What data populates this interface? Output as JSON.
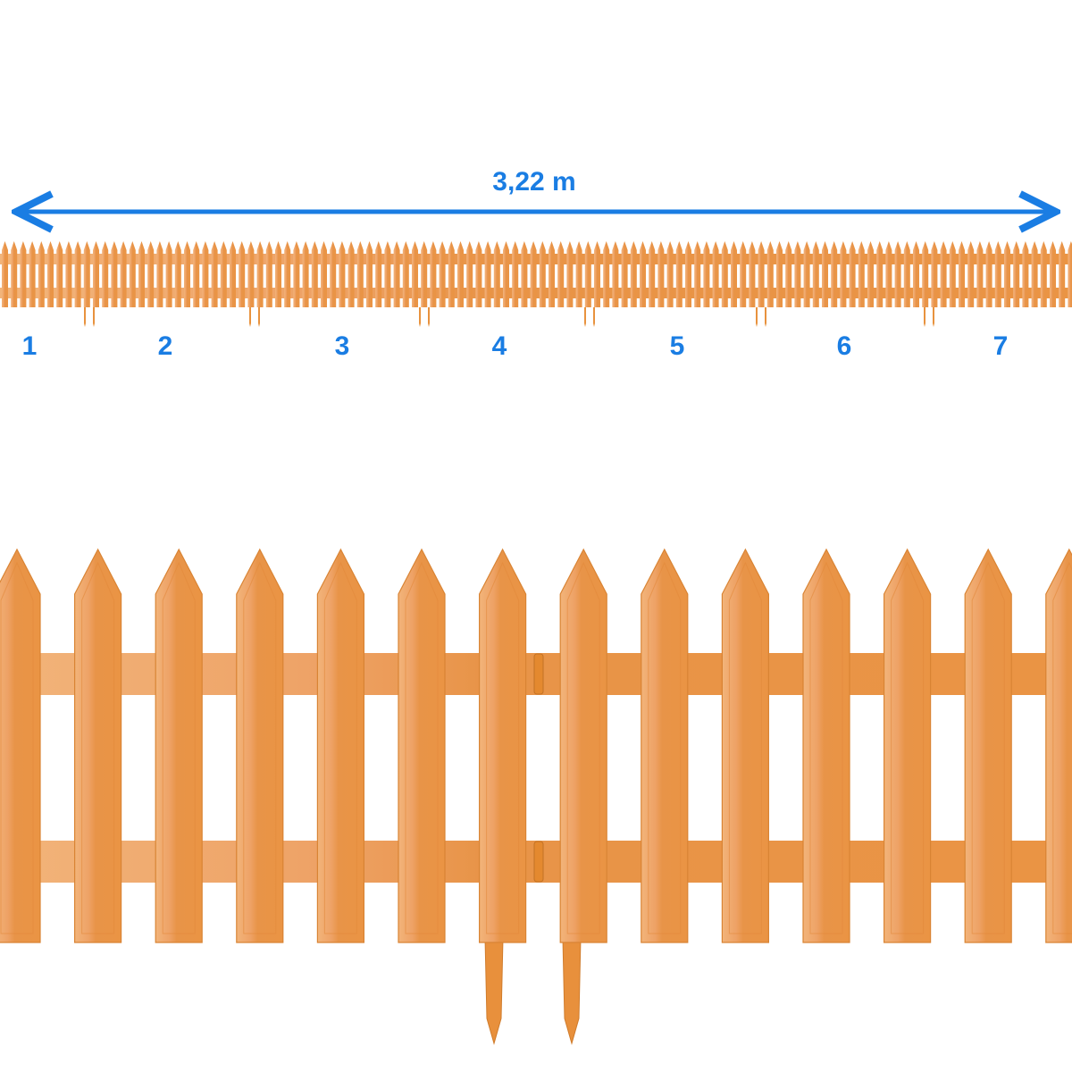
{
  "measurement": {
    "length_label": "3,22 m"
  },
  "panels": {
    "labels": [
      "1",
      "2",
      "3",
      "4",
      "5",
      "6",
      "7"
    ]
  }
}
